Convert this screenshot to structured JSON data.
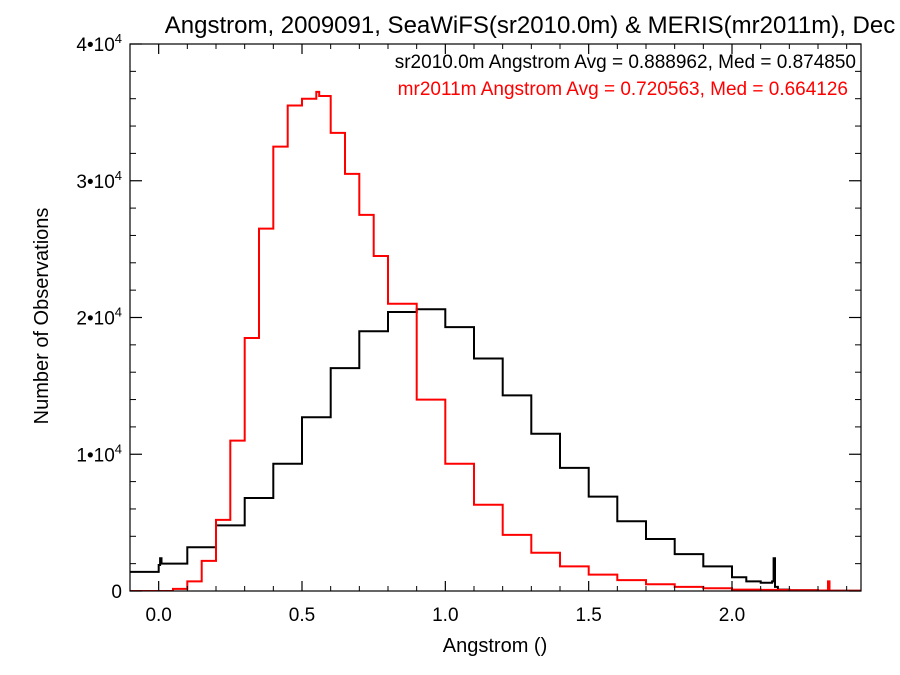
{
  "chart_data": {
    "type": "line",
    "title": "Angstrom, 2009091, SeaWiFS(sr2010.0m) & MERIS(mr2011m), Dec",
    "xlabel": "Angstrom ()",
    "ylabel": "Number of Observations",
    "xlim": [
      -0.1,
      2.45
    ],
    "ylim": [
      0,
      40000
    ],
    "grid": false,
    "legend_placement": "top-right",
    "x_ticks": [
      {
        "value": 0.0,
        "label": "0.0"
      },
      {
        "value": 0.5,
        "label": "0.5"
      },
      {
        "value": 1.0,
        "label": "1.0"
      },
      {
        "value": 1.5,
        "label": "1.5"
      },
      {
        "value": 2.0,
        "label": "2.0"
      }
    ],
    "y_ticks": [
      {
        "value": 0,
        "label": "0",
        "exp": ""
      },
      {
        "value": 10000,
        "label": "1•10",
        "exp": "4"
      },
      {
        "value": 20000,
        "label": "2•10",
        "exp": "4"
      },
      {
        "value": 30000,
        "label": "3•10",
        "exp": "4"
      },
      {
        "value": 40000,
        "label": "4•10",
        "exp": "4"
      }
    ],
    "series": [
      {
        "name": "sr2010.0m",
        "legend": "sr2010.0m Angstrom Avg = 0.888962, Med = 0.874850",
        "color": "#000000",
        "x": [
          -0.1,
          0.0,
          0.005,
          0.01,
          0.1,
          0.2,
          0.3,
          0.4,
          0.5,
          0.6,
          0.7,
          0.8,
          0.9,
          1.0,
          1.1,
          1.2,
          1.3,
          1.4,
          1.5,
          1.6,
          1.7,
          1.8,
          1.9,
          2.0,
          2.05,
          2.1,
          2.14,
          2.145,
          2.15,
          2.16,
          2.2,
          2.3,
          2.45
        ],
        "y": [
          1400,
          1900,
          2400,
          2000,
          3200,
          4800,
          6800,
          9300,
          12700,
          16300,
          19000,
          20400,
          20600,
          19300,
          17000,
          14300,
          11500,
          9000,
          6900,
          5100,
          3800,
          2700,
          1800,
          1000,
          700,
          600,
          700,
          2400,
          300,
          100,
          60,
          20,
          0
        ]
      },
      {
        "name": "mr2011m",
        "legend": "mr2011m Angstrom Avg = 0.720563, Med = 0.664126",
        "color": "#ff0000",
        "x": [
          -0.1,
          0.05,
          0.1,
          0.15,
          0.2,
          0.25,
          0.3,
          0.35,
          0.4,
          0.45,
          0.5,
          0.55,
          0.56,
          0.6,
          0.65,
          0.7,
          0.75,
          0.8,
          0.9,
          1.0,
          1.1,
          1.2,
          1.3,
          1.4,
          1.5,
          1.6,
          1.7,
          1.8,
          1.9,
          2.0,
          2.1,
          2.2,
          2.3,
          2.33,
          2.335,
          2.34,
          2.45
        ],
        "y": [
          0,
          150,
          700,
          2200,
          5200,
          11000,
          18500,
          26500,
          32500,
          35500,
          36000,
          36500,
          36200,
          33500,
          30500,
          27500,
          24500,
          21000,
          14000,
          9300,
          6300,
          4100,
          2800,
          1800,
          1200,
          800,
          500,
          300,
          200,
          100,
          80,
          60,
          40,
          30,
          700,
          20,
          0
        ]
      }
    ]
  }
}
